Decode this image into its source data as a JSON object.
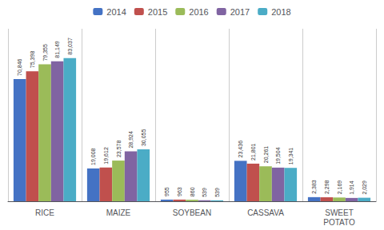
{
  "chart_data": {
    "type": "bar",
    "categories": [
      "RICE",
      "MAIZE",
      "SOYBEAN",
      "CASSAVA",
      "SWEET\nPOTATO"
    ],
    "series": [
      {
        "name": "2014",
        "color": "#4472C4",
        "values": [
          70846,
          19008,
          955,
          23436,
          2383
        ],
        "value_labels": [
          "70,846",
          "19,008",
          "955",
          "23,436",
          "2,383"
        ]
      },
      {
        "name": "2015",
        "color": "#C0504D",
        "values": [
          75398,
          19612,
          963,
          21801,
          2298
        ],
        "value_labels": [
          "75,398",
          "19,612",
          "963",
          "21,801",
          "2,298"
        ]
      },
      {
        "name": "2016",
        "color": "#9BBB59",
        "values": [
          79355,
          23578,
          860,
          20261,
          2169
        ],
        "value_labels": [
          "79,355",
          "23,578",
          "860",
          "20,261",
          "2,169"
        ]
      },
      {
        "name": "2017",
        "color": "#8064A2",
        "values": [
          81149,
          28924,
          539,
          19504,
          1914
        ],
        "value_labels": [
          "81,149",
          "28,924",
          "539",
          "19,504",
          "1,914"
        ]
      },
      {
        "name": "2018",
        "color": "#4BACC6",
        "values": [
          83037,
          30055,
          539,
          19341,
          2029
        ],
        "value_labels": [
          "83,037",
          "30,055",
          "539",
          "19,341",
          "2,029"
        ]
      }
    ],
    "ylim": [
      0,
      100000
    ],
    "data_labels": true,
    "tick_labels": "x",
    "legend": "top"
  }
}
